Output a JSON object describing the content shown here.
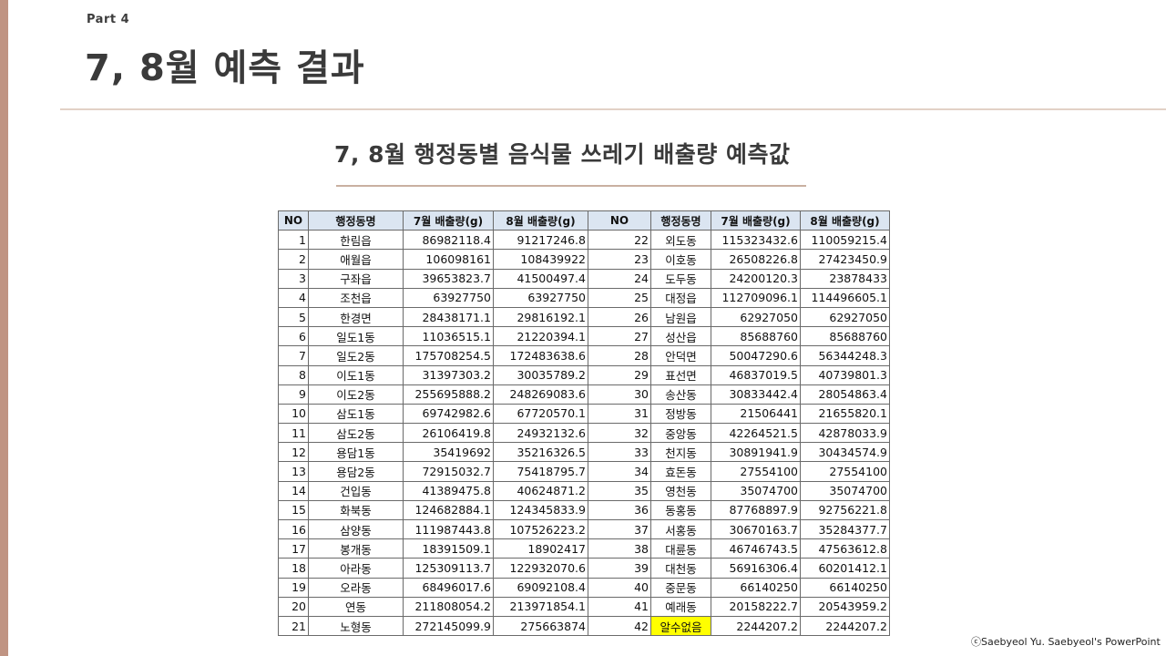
{
  "header": {
    "part": "Part 4",
    "title": "7, 8월 예측 결과",
    "subtitle": "7, 8월 행정동별 음식물 쓰레기 배출량 예측값"
  },
  "table": {
    "headers": [
      "NO",
      "행정동명",
      "7월 배출량(g)",
      "8월 배출량(g)",
      "NO",
      "행정동명",
      "7월 배출량(g)",
      "8월 배출량(g)"
    ],
    "rows": [
      [
        [
          "1",
          "한림읍",
          "86982118.4",
          "91217246.8"
        ],
        [
          "22",
          "외도동",
          "115323432.6",
          "110059215.4"
        ]
      ],
      [
        [
          "2",
          "애월읍",
          "106098161",
          "108439922"
        ],
        [
          "23",
          "이호동",
          "26508226.8",
          "27423450.9"
        ]
      ],
      [
        [
          "3",
          "구좌읍",
          "39653823.7",
          "41500497.4"
        ],
        [
          "24",
          "도두동",
          "24200120.3",
          "23878433"
        ]
      ],
      [
        [
          "4",
          "조천읍",
          "63927750",
          "63927750"
        ],
        [
          "25",
          "대정읍",
          "112709096.1",
          "114496605.1"
        ]
      ],
      [
        [
          "5",
          "한경면",
          "28438171.1",
          "29816192.1"
        ],
        [
          "26",
          "남원읍",
          "62927050",
          "62927050"
        ]
      ],
      [
        [
          "6",
          "일도1동",
          "11036515.1",
          "21220394.1"
        ],
        [
          "27",
          "성산읍",
          "85688760",
          "85688760"
        ]
      ],
      [
        [
          "7",
          "일도2동",
          "175708254.5",
          "172483638.6"
        ],
        [
          "28",
          "안덕면",
          "50047290.6",
          "56344248.3"
        ]
      ],
      [
        [
          "8",
          "이도1동",
          "31397303.2",
          "30035789.2"
        ],
        [
          "29",
          "표선면",
          "46837019.5",
          "40739801.3"
        ]
      ],
      [
        [
          "9",
          "이도2동",
          "255695888.2",
          "248269083.6"
        ],
        [
          "30",
          "송산동",
          "30833442.4",
          "28054863.4"
        ]
      ],
      [
        [
          "10",
          "삼도1동",
          "69742982.6",
          "67720570.1"
        ],
        [
          "31",
          "정방동",
          "21506441",
          "21655820.1"
        ]
      ],
      [
        [
          "11",
          "삼도2동",
          "26106419.8",
          "24932132.6"
        ],
        [
          "32",
          "중앙동",
          "42264521.5",
          "42878033.9"
        ]
      ],
      [
        [
          "12",
          "용담1동",
          "35419692",
          "35216326.5"
        ],
        [
          "33",
          "천지동",
          "30891941.9",
          "30434574.9"
        ]
      ],
      [
        [
          "13",
          "용담2동",
          "72915032.7",
          "75418795.7"
        ],
        [
          "34",
          "효돈동",
          "27554100",
          "27554100"
        ]
      ],
      [
        [
          "14",
          "건입동",
          "41389475.8",
          "40624871.2"
        ],
        [
          "35",
          "영천동",
          "35074700",
          "35074700"
        ]
      ],
      [
        [
          "15",
          "화북동",
          "124682884.1",
          "124345833.9"
        ],
        [
          "36",
          "동홍동",
          "87768897.9",
          "92756221.8"
        ]
      ],
      [
        [
          "16",
          "삼양동",
          "111987443.8",
          "107526223.2"
        ],
        [
          "37",
          "서홍동",
          "30670163.7",
          "35284377.7"
        ]
      ],
      [
        [
          "17",
          "봉개동",
          "18391509.1",
          "18902417"
        ],
        [
          "38",
          "대륜동",
          "46746743.5",
          "47563612.8"
        ]
      ],
      [
        [
          "18",
          "아라동",
          "125309113.7",
          "122932070.6"
        ],
        [
          "39",
          "대천동",
          "56916306.4",
          "60201412.1"
        ]
      ],
      [
        [
          "19",
          "오라동",
          "68496017.6",
          "69092108.4"
        ],
        [
          "40",
          "중문동",
          "66140250",
          "66140250"
        ]
      ],
      [
        [
          "20",
          "연동",
          "211808054.2",
          "213971854.1"
        ],
        [
          "41",
          "예래동",
          "20158222.7",
          "20543959.2"
        ]
      ],
      [
        [
          "21",
          "노형동",
          "272145099.9",
          "275663874"
        ],
        [
          "42",
          "알수없음",
          "2244207.2",
          "2244207.2"
        ]
      ]
    ],
    "highlight_color": "#ffff00"
  },
  "footer": {
    "credit": "ⓒSaebyeol Yu. Saebyeol's PowerPoint"
  },
  "colors": {
    "accent_bar": "#c09483",
    "divider": "#e2d1c6",
    "header_fill": "#dbe5f1"
  }
}
